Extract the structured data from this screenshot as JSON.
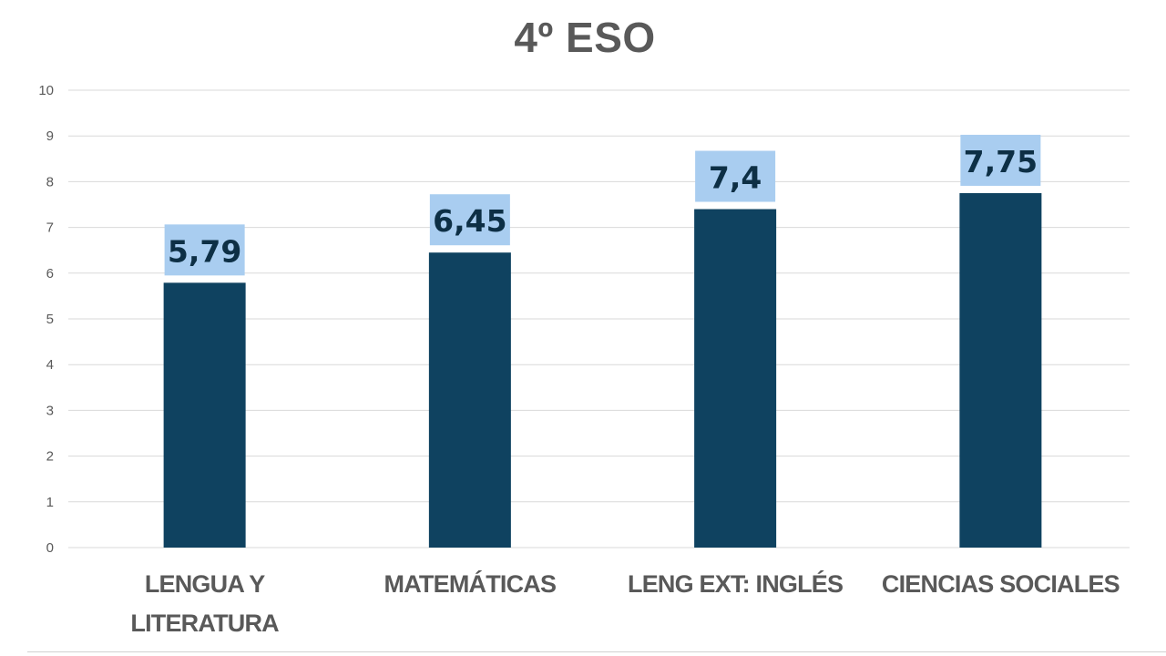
{
  "chart_data": {
    "type": "bar",
    "title": "4º ESO",
    "categories": [
      "LENGUA Y LITERATURA",
      "MATEMÁTICAS",
      "LENG EXT: INGLÉS",
      "CIENCIAS SOCIALES"
    ],
    "category_lines": [
      [
        "LENGUA Y",
        "LITERATURA"
      ],
      [
        "MATEMÁTICAS"
      ],
      [
        "LENG EXT: INGLÉS"
      ],
      [
        "CIENCIAS SOCIALES"
      ]
    ],
    "values": [
      5.79,
      6.45,
      7.4,
      7.75
    ],
    "value_labels": [
      "5,79",
      "6,45",
      "7,4",
      "7,75"
    ],
    "ylim": [
      0,
      10
    ],
    "yticks": [
      0,
      1,
      2,
      3,
      4,
      5,
      6,
      7,
      8,
      9,
      10
    ],
    "grid": true,
    "legend": "none",
    "colors": {
      "bar": "#0f4260",
      "label_bg": "#a9cdf0",
      "label_text": "#0d2f45",
      "grid": "#d9d9d9",
      "text": "#595959"
    }
  }
}
